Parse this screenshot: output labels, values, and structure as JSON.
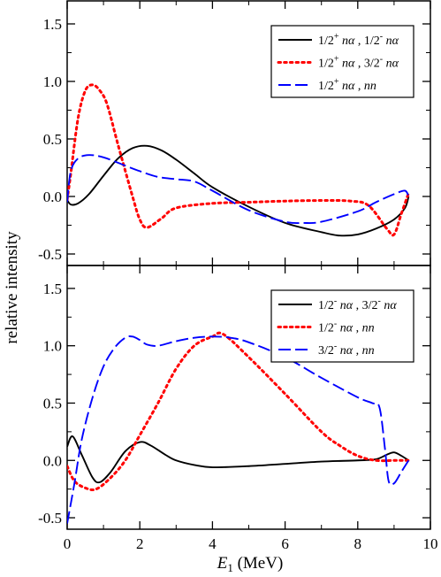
{
  "chart_data": [
    {
      "type": "line",
      "panel": "top",
      "xlim": [
        0,
        10
      ],
      "ylim": [
        -0.6,
        1.7
      ],
      "yticks": [
        -0.5,
        0.0,
        0.5,
        1.0,
        1.5
      ],
      "ytick_labels": [
        "-0.5",
        "0.0",
        "0.5",
        "1.0",
        "1.5"
      ],
      "legend_position": "top-right",
      "series": [
        {
          "name": "1/2⁺ nα , 1/2⁻ nα",
          "color": "#000000",
          "dash": "solid",
          "x": [
            0.0,
            0.1,
            0.3,
            0.6,
            1.0,
            1.4,
            1.8,
            2.2,
            2.6,
            3.0,
            3.5,
            4.0,
            5.0,
            6.0,
            7.0,
            7.5,
            8.0,
            8.5,
            9.0,
            9.3,
            9.4
          ],
          "y": [
            -0.03,
            -0.07,
            -0.06,
            0.02,
            0.18,
            0.33,
            0.42,
            0.44,
            0.4,
            0.32,
            0.2,
            0.08,
            -0.09,
            -0.23,
            -0.31,
            -0.34,
            -0.33,
            -0.28,
            -0.2,
            -0.1,
            0.0
          ]
        },
        {
          "name": "1/2⁺ nα , 3/2⁻ nα",
          "color": "#ff0000",
          "dash": "dotted",
          "x": [
            0.0,
            0.1,
            0.3,
            0.5,
            0.7,
            0.9,
            1.1,
            1.4,
            1.8,
            2.0,
            2.2,
            2.6,
            3.0,
            4.0,
            5.0,
            6.0,
            7.0,
            7.8,
            8.3,
            8.8,
            9.0,
            9.2,
            9.4
          ],
          "y": [
            -0.03,
            0.2,
            0.68,
            0.92,
            0.97,
            0.92,
            0.8,
            0.45,
            0.0,
            -0.2,
            -0.27,
            -0.19,
            -0.1,
            -0.06,
            -0.05,
            -0.04,
            -0.035,
            -0.04,
            -0.08,
            -0.28,
            -0.33,
            -0.15,
            0.03
          ]
        },
        {
          "name": "1/2⁺ nα , nn",
          "color": "#0000ff",
          "dash": "dashed",
          "x": [
            0.0,
            0.1,
            0.3,
            0.6,
            1.0,
            1.5,
            2.0,
            2.5,
            3.0,
            3.5,
            4.0,
            5.0,
            6.0,
            6.5,
            7.0,
            8.0,
            8.5,
            9.0,
            9.3,
            9.4
          ],
          "y": [
            -0.05,
            0.22,
            0.33,
            0.36,
            0.34,
            0.28,
            0.22,
            0.17,
            0.15,
            0.13,
            0.05,
            -0.12,
            -0.22,
            -0.23,
            -0.22,
            -0.13,
            -0.05,
            0.02,
            0.05,
            0.0
          ]
        }
      ]
    },
    {
      "type": "line",
      "panel": "bottom",
      "xlim": [
        0,
        10
      ],
      "ylim": [
        -0.6,
        1.7
      ],
      "yticks": [
        -0.5,
        0.0,
        0.5,
        1.0,
        1.5
      ],
      "ytick_labels": [
        "-0.5",
        "0.0",
        "0.5",
        "1.0",
        "1.5"
      ],
      "legend_position": "top-right",
      "series": [
        {
          "name": "1/2⁻ nα , 3/2⁻ nα",
          "color": "#000000",
          "dash": "solid",
          "x": [
            0.0,
            0.15,
            0.4,
            0.7,
            0.9,
            1.2,
            1.6,
            2.0,
            2.3,
            2.7,
            3.0,
            3.5,
            4.0,
            5.0,
            6.0,
            7.0,
            8.0,
            8.5,
            8.8,
            9.0,
            9.2,
            9.4
          ],
          "y": [
            0.12,
            0.21,
            0.05,
            -0.15,
            -0.19,
            -0.1,
            0.08,
            0.16,
            0.13,
            0.05,
            0.0,
            -0.04,
            -0.06,
            -0.05,
            -0.03,
            -0.01,
            0.0,
            0.01,
            0.05,
            0.07,
            0.04,
            0.0
          ]
        },
        {
          "name": "1/2⁻ nα , nn",
          "color": "#ff0000",
          "dash": "dotted",
          "x": [
            0.0,
            0.2,
            0.5,
            0.8,
            1.2,
            1.6,
            2.0,
            2.5,
            3.0,
            3.5,
            4.0,
            4.3,
            5.0,
            6.0,
            7.0,
            7.5,
            8.0,
            8.5,
            9.0,
            9.4
          ],
          "y": [
            -0.05,
            -0.18,
            -0.24,
            -0.25,
            -0.15,
            0.0,
            0.22,
            0.5,
            0.8,
            1.0,
            1.08,
            1.1,
            0.9,
            0.58,
            0.25,
            0.13,
            0.04,
            0.0,
            0.0,
            0.0
          ]
        },
        {
          "name": "3/2⁻ nα , nn",
          "color": "#0000ff",
          "dash": "dashed",
          "x": [
            0.0,
            0.2,
            0.4,
            0.7,
            1.0,
            1.3,
            1.6,
            1.8,
            2.0,
            2.2,
            2.5,
            3.0,
            3.5,
            4.0,
            4.5,
            5.0,
            6.0,
            7.0,
            8.0,
            8.4,
            8.6,
            8.75,
            8.85,
            9.0,
            9.2,
            9.4
          ],
          "y": [
            -0.55,
            -0.2,
            0.18,
            0.55,
            0.82,
            0.98,
            1.07,
            1.08,
            1.05,
            1.01,
            1.0,
            1.04,
            1.07,
            1.08,
            1.07,
            1.03,
            0.9,
            0.72,
            0.55,
            0.5,
            0.46,
            0.1,
            -0.18,
            -0.2,
            -0.1,
            0.0
          ]
        }
      ]
    }
  ],
  "xticks": [
    0,
    2,
    4,
    6,
    8,
    10
  ],
  "xtick_labels": [
    "0",
    "2",
    "4",
    "6",
    "8",
    "10"
  ],
  "ylabel": "relative intensity",
  "xlabel_main": "E",
  "xlabel_sub": "1",
  "xlabel_unit": " (MeV)",
  "legend_top": [
    {
      "base": "1/2",
      "sup": "+",
      "rest": " nα , 1/2",
      "sup2": "-",
      "rest2": " nα"
    },
    {
      "base": "1/2",
      "sup": "+",
      "rest": " nα , 3/2",
      "sup2": "-",
      "rest2": " nα"
    },
    {
      "base": "1/2",
      "sup": "+",
      "rest": " nα , ",
      "sup2": "",
      "rest2": "nn"
    }
  ],
  "legend_bottom": [
    {
      "base": "1/2",
      "sup": "-",
      "rest": " nα , 3/2",
      "sup2": "-",
      "rest2": " nα"
    },
    {
      "base": "1/2",
      "sup": "-",
      "rest": " nα , ",
      "sup2": "",
      "rest2": "nn"
    },
    {
      "base": "3/2",
      "sup": "-",
      "rest": " nα , ",
      "sup2": "",
      "rest2": "nn"
    }
  ]
}
